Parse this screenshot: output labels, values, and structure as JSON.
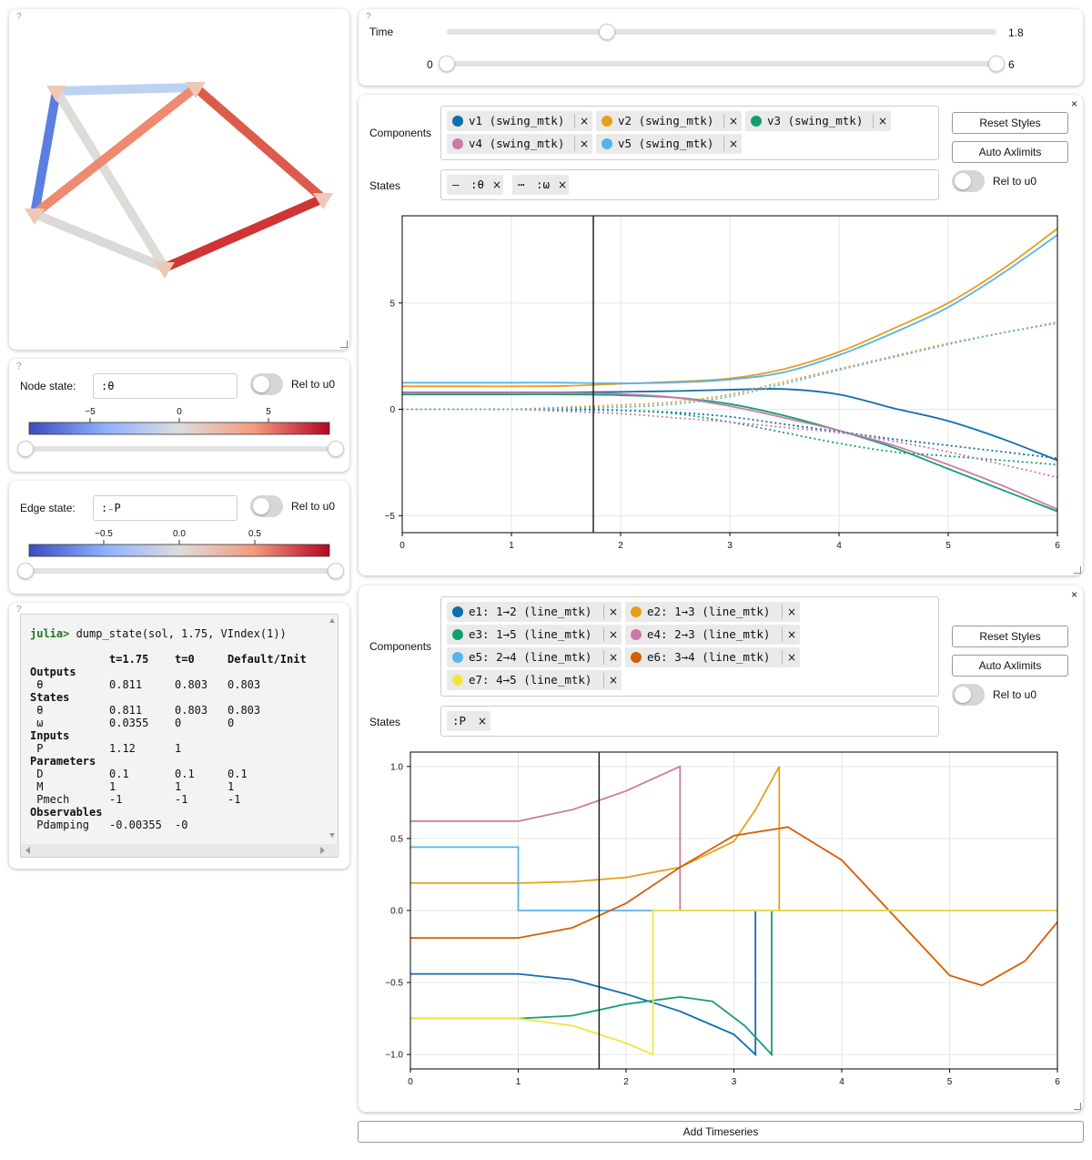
{
  "graph_panel": {
    "help": "?",
    "nodes": [
      {
        "id": "1",
        "color": "#edc9b5"
      },
      {
        "id": "2",
        "color": "#edc9b5"
      },
      {
        "id": "3",
        "color": "#edc9b5"
      },
      {
        "id": "4",
        "color": "#edc9b5"
      },
      {
        "id": "5",
        "color": "#edc9b5"
      }
    ],
    "edges": [
      {
        "id": "e1",
        "color": "#bcd2f2"
      },
      {
        "id": "e2",
        "color": "#5b7fe0"
      },
      {
        "id": "e3",
        "color": "#dedcd9"
      },
      {
        "id": "e4",
        "color": "#ee8a6f"
      },
      {
        "id": "e5",
        "color": "#dc5b4a"
      },
      {
        "id": "e6",
        "color": "#dcdad8"
      },
      {
        "id": "e7",
        "color": "#cf3534"
      }
    ]
  },
  "node_state": {
    "help": "?",
    "label": "Node state:",
    "value": ":θ",
    "toggle_label": "Rel to u0",
    "ticks": [
      "−5",
      "0",
      "5"
    ]
  },
  "edge_state": {
    "label": "Edge state:",
    "value": ":₋P",
    "toggle_label": "Rel to u0",
    "ticks": [
      "−0.5",
      "0.0",
      "0.5"
    ]
  },
  "colormap": {
    "low": "#3b4cc0",
    "mid": "#dddddd",
    "high": "#b40426"
  },
  "console": {
    "help": "?",
    "prompt": "julia>",
    "command": " dump_state(sol, 1.75, VIndex(1))",
    "header": [
      "t=1.75",
      "t=0",
      "Default/Init"
    ],
    "sections": [
      {
        "title": "Outputs",
        "rows": [
          [
            "θ",
            "0.811",
            "0.803",
            "0.803"
          ]
        ]
      },
      {
        "title": "States",
        "rows": [
          [
            "θ",
            "0.811",
            "0.803",
            "0.803"
          ],
          [
            "ω",
            "0.0355",
            "0",
            "0"
          ]
        ]
      },
      {
        "title": "Inputs",
        "rows": [
          [
            "P",
            "1.12",
            "1",
            ""
          ]
        ]
      },
      {
        "title": "Parameters",
        "rows": [
          [
            "D",
            "0.1",
            "0.1",
            "0.1"
          ],
          [
            "M",
            "1",
            "1",
            "1"
          ],
          [
            "Pmech",
            "-1",
            "-1",
            "-1"
          ]
        ]
      },
      {
        "title": "Observables",
        "rows": [
          [
            "Pdamping",
            "-0.00355",
            "-0",
            ""
          ]
        ]
      }
    ]
  },
  "time_panel": {
    "help": "?",
    "label": "Time",
    "value": "1.8",
    "current": 1.75,
    "min_label": "0",
    "max_label": "6",
    "range": [
      0,
      6
    ]
  },
  "vertex_plot": {
    "close": "×",
    "components_label": "Components",
    "states_label": "States",
    "reset_label": "Reset Styles",
    "auto_label": "Auto Axlimits",
    "toggle_label": "Rel to u0",
    "components": [
      {
        "name": "v1 (swing_mtk)",
        "color": "#0f6ead"
      },
      {
        "name": "v2 (swing_mtk)",
        "color": "#e69f1a"
      },
      {
        "name": "v3 (swing_mtk)",
        "color": "#129e73"
      },
      {
        "name": "v4 (swing_mtk)",
        "color": "#cc79a7"
      },
      {
        "name": "v5 (swing_mtk)",
        "color": "#56b4e9"
      }
    ],
    "states": [
      {
        "style": "—",
        "name": ":θ"
      },
      {
        "style": "⋯",
        "name": ":ω"
      }
    ]
  },
  "edge_plot": {
    "close": "×",
    "components_label": "Components",
    "states_label": "States",
    "reset_label": "Reset Styles",
    "auto_label": "Auto Axlimits",
    "toggle_label": "Rel to u0",
    "components": [
      {
        "name": "e1: 1→2 (line_mtk)",
        "color": "#0f6ead"
      },
      {
        "name": "e2: 1→3 (line_mtk)",
        "color": "#e69f1a"
      },
      {
        "name": "e3: 1→5 (line_mtk)",
        "color": "#129e73"
      },
      {
        "name": "e4: 2→3 (line_mtk)",
        "color": "#cc79a7"
      },
      {
        "name": "e5: 2→4 (line_mtk)",
        "color": "#56b4e9"
      },
      {
        "name": "e6: 3→4 (line_mtk)",
        "color": "#d55e00"
      },
      {
        "name": "e7: 4→5 (line_mtk)",
        "color": "#f0e442"
      }
    ],
    "states": [
      {
        "name": ":P"
      }
    ]
  },
  "add_timeseries": "Add Timeseries",
  "chart_data": [
    {
      "type": "line",
      "xlim": [
        0,
        6
      ],
      "ylim": [
        -5.8,
        9.1
      ],
      "xticks": [
        "0",
        "1",
        "2",
        "3",
        "4",
        "5",
        "6"
      ],
      "yticks": [
        "−5",
        "0",
        "5"
      ],
      "ytick_values": [
        -5,
        0,
        5
      ],
      "grid": true,
      "cursor_x": 1.75,
      "x": [
        0,
        0.5,
        1,
        1.5,
        2,
        2.5,
        3,
        3.5,
        4,
        4.5,
        5,
        5.5,
        6
      ],
      "series": [
        {
          "color": "#0f6ead",
          "dash": false,
          "values": [
            0.8,
            0.8,
            0.8,
            0.8,
            0.82,
            0.86,
            0.92,
            0.95,
            0.7,
            0.05,
            -0.55,
            -1.4,
            -2.4
          ]
        },
        {
          "color": "#e69f1a",
          "dash": false,
          "values": [
            1.08,
            1.08,
            1.08,
            1.1,
            1.2,
            1.3,
            1.45,
            1.9,
            2.7,
            3.8,
            5.0,
            6.6,
            8.5
          ]
        },
        {
          "color": "#129e73",
          "dash": false,
          "values": [
            0.7,
            0.7,
            0.7,
            0.7,
            0.66,
            0.55,
            0.25,
            -0.3,
            -1.0,
            -1.8,
            -2.8,
            -3.8,
            -4.8
          ]
        },
        {
          "color": "#cc79a7",
          "dash": false,
          "values": [
            0.78,
            0.78,
            0.78,
            0.78,
            0.72,
            0.55,
            0.15,
            -0.4,
            -1.0,
            -1.7,
            -2.6,
            -3.6,
            -4.7
          ]
        },
        {
          "color": "#56b4e9",
          "dash": false,
          "values": [
            1.25,
            1.25,
            1.25,
            1.25,
            1.22,
            1.26,
            1.4,
            1.75,
            2.55,
            3.6,
            4.8,
            6.4,
            8.2
          ]
        },
        {
          "color": "#0f6ead",
          "dash": true,
          "values": [
            0,
            0,
            0,
            -0.02,
            -0.05,
            -0.15,
            -0.35,
            -0.7,
            -1.05,
            -1.4,
            -1.7,
            -2.0,
            -2.3
          ]
        },
        {
          "color": "#e69f1a",
          "dash": true,
          "values": [
            0,
            0,
            0,
            0.1,
            0.2,
            0.35,
            0.7,
            1.3,
            1.9,
            2.5,
            3.1,
            3.6,
            4.1
          ]
        },
        {
          "color": "#129e73",
          "dash": true,
          "values": [
            0,
            0,
            0,
            0.0,
            -0.05,
            -0.2,
            -0.6,
            -1.1,
            -1.6,
            -2.0,
            -2.2,
            -2.4,
            -2.6
          ]
        },
        {
          "color": "#cc79a7",
          "dash": true,
          "values": [
            0,
            0,
            0,
            -0.1,
            -0.2,
            -0.4,
            -0.6,
            -0.85,
            -1.1,
            -1.5,
            -2.0,
            -2.6,
            -3.2
          ]
        },
        {
          "color": "#56b4e9",
          "dash": true,
          "values": [
            0,
            0,
            0,
            0.05,
            0.1,
            0.25,
            0.6,
            1.2,
            1.85,
            2.45,
            3.05,
            3.6,
            4.05
          ]
        }
      ]
    },
    {
      "type": "line",
      "xlim": [
        0,
        6
      ],
      "ylim": [
        -1.1,
        1.1
      ],
      "xticks": [
        "0",
        "1",
        "2",
        "3",
        "4",
        "5",
        "6"
      ],
      "yticks": [
        "−1.0",
        "−0.5",
        "0.0",
        "0.5",
        "1.0"
      ],
      "ytick_values": [
        -1,
        -0.5,
        0,
        0.5,
        1
      ],
      "grid": true,
      "cursor_x": 1.75,
      "series": [
        {
          "color": "#0f6ead",
          "points": [
            [
              0,
              -0.44
            ],
            [
              1,
              -0.44
            ],
            [
              1.5,
              -0.48
            ],
            [
              2,
              -0.58
            ],
            [
              2.5,
              -0.7
            ],
            [
              3,
              -0.86
            ],
            [
              3.2,
              -1.0
            ],
            [
              3.2,
              0
            ],
            [
              6,
              0
            ]
          ]
        },
        {
          "color": "#e69f1a",
          "points": [
            [
              0,
              0.19
            ],
            [
              1,
              0.19
            ],
            [
              1.5,
              0.2
            ],
            [
              2,
              0.23
            ],
            [
              2.5,
              0.3
            ],
            [
              3,
              0.48
            ],
            [
              3.2,
              0.7
            ],
            [
              3.42,
              1.0
            ],
            [
              3.42,
              0
            ],
            [
              6,
              0
            ]
          ]
        },
        {
          "color": "#129e73",
          "points": [
            [
              0,
              -0.75
            ],
            [
              1,
              -0.75
            ],
            [
              1.5,
              -0.73
            ],
            [
              2,
              -0.65
            ],
            [
              2.5,
              -0.6
            ],
            [
              2.8,
              -0.63
            ],
            [
              3.1,
              -0.8
            ],
            [
              3.35,
              -1.0
            ],
            [
              3.35,
              0
            ],
            [
              6,
              0
            ]
          ]
        },
        {
          "color": "#cc79a7",
          "points": [
            [
              0,
              0.62
            ],
            [
              1,
              0.62
            ],
            [
              1.5,
              0.7
            ],
            [
              2,
              0.83
            ],
            [
              2.5,
              1.0
            ],
            [
              2.5,
              0
            ],
            [
              6,
              0
            ]
          ]
        },
        {
          "color": "#56b4e9",
          "points": [
            [
              0,
              0.44
            ],
            [
              1,
              0.44
            ],
            [
              1,
              0
            ],
            [
              6,
              0
            ]
          ]
        },
        {
          "color": "#d55e00",
          "points": [
            [
              0,
              -0.19
            ],
            [
              1,
              -0.19
            ],
            [
              1.5,
              -0.12
            ],
            [
              2,
              0.05
            ],
            [
              2.5,
              0.3
            ],
            [
              3,
              0.52
            ],
            [
              3.5,
              0.58
            ],
            [
              4,
              0.35
            ],
            [
              4.5,
              -0.05
            ],
            [
              5,
              -0.45
            ],
            [
              5.3,
              -0.52
            ],
            [
              5.7,
              -0.35
            ],
            [
              6,
              -0.08
            ]
          ]
        },
        {
          "color": "#f0e442",
          "points": [
            [
              0,
              -0.75
            ],
            [
              1,
              -0.75
            ],
            [
              1.5,
              -0.8
            ],
            [
              2,
              -0.92
            ],
            [
              2.25,
              -1.0
            ],
            [
              2.25,
              0
            ],
            [
              6,
              0
            ]
          ]
        }
      ]
    }
  ]
}
